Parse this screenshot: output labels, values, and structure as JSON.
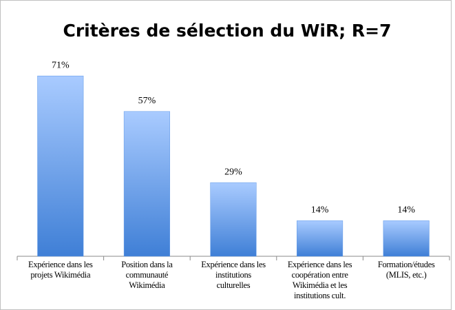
{
  "chart_data": {
    "type": "bar",
    "title": "Critères de sélection du WiR; R=7",
    "categories": [
      "Expérience dans les\nprojets Wikimédia",
      "Position dans la\ncommunauté\nWikimédia",
      "Expérience dans les\ninstitutions\nculturelles",
      "Expérience dans les\ncoopération entre\nWikimédia et les\ninstitutions cult.",
      "Formation/études\n(MLIS, etc.)"
    ],
    "values": [
      71,
      57,
      29,
      14,
      14
    ],
    "value_labels": [
      "71%",
      "57%",
      "29%",
      "14%",
      "14%"
    ],
    "color": "#5a95e6",
    "ylim": [
      0,
      80
    ]
  }
}
